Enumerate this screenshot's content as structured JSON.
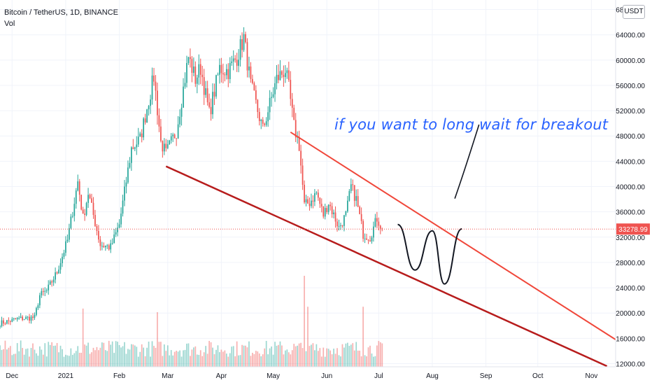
{
  "header": {
    "symbol": "Bitcoin / TetherUS, 1D, BINANCE",
    "volume_label": "Vol"
  },
  "currency_button": "USDT",
  "annotation": "if you want to long wait for breakout",
  "colors": {
    "up": "#26a69a",
    "down": "#ef5350",
    "upper_trendline": "#f0473a",
    "lower_trendline": "#b71c1c",
    "annotation": "#2962ff",
    "price_tag": "#ef5350"
  },
  "chart_data": {
    "type": "candlestick",
    "title": "Bitcoin / TetherUS, 1D, BINANCE",
    "y_axis": {
      "ticks": [
        12000,
        16000,
        20000,
        24000,
        28000,
        32000,
        36000,
        40000,
        44000,
        48000,
        52000,
        56000,
        60000,
        64000,
        68000
      ],
      "tick_labels": [
        "12000.00",
        "16000.00",
        "20000.00",
        "24000.00",
        "28000.00",
        "32000.00",
        "36000.00",
        "40000.00",
        "44000.00",
        "48000.00",
        "52000.00",
        "56000.00",
        "60000.00",
        "64000.00",
        "68000.00"
      ],
      "range": [
        11500,
        69500
      ]
    },
    "x_axis": {
      "ticks": [
        "2020-12-01",
        "2021-01-01",
        "2021-02-01",
        "2021-03-01",
        "2021-04-01",
        "2021-05-01",
        "2021-06-01",
        "2021-07-01",
        "2021-08-01",
        "2021-09-01",
        "2021-10-01",
        "2021-11-01"
      ],
      "tick_labels": [
        "Dec",
        "2021",
        "Feb",
        "Mar",
        "Apr",
        "May",
        "Jun",
        "Jul",
        "Aug",
        "Sep",
        "Oct",
        "Nov"
      ],
      "range": [
        "2020-11-24",
        "2021-11-15"
      ]
    },
    "last_price": 33278.99,
    "last_price_label": "33278.99",
    "price_keypoints": [
      [
        "2020-11-24",
        18400
      ],
      [
        "2020-12-05",
        19100
      ],
      [
        "2020-12-14",
        19300
      ],
      [
        "2020-12-17",
        22800
      ],
      [
        "2020-12-21",
        23500
      ],
      [
        "2020-12-27",
        26500
      ],
      [
        "2021-01-02",
        31500
      ],
      [
        "2021-01-08",
        40800
      ],
      [
        "2021-01-11",
        35000
      ],
      [
        "2021-01-14",
        39000
      ],
      [
        "2021-01-21",
        30800
      ],
      [
        "2021-01-27",
        30400
      ],
      [
        "2021-02-01",
        34000
      ],
      [
        "2021-02-08",
        46000
      ],
      [
        "2021-02-13",
        47500
      ],
      [
        "2021-02-21",
        57400
      ],
      [
        "2021-02-25",
        47000
      ],
      [
        "2021-02-28",
        45200
      ],
      [
        "2021-03-06",
        48800
      ],
      [
        "2021-03-13",
        60500
      ],
      [
        "2021-03-17",
        57000
      ],
      [
        "2021-03-20",
        58800
      ],
      [
        "2021-03-25",
        51500
      ],
      [
        "2021-03-31",
        58700
      ],
      [
        "2021-04-05",
        58300
      ],
      [
        "2021-04-10",
        60500
      ],
      [
        "2021-04-14",
        63500
      ],
      [
        "2021-04-18",
        56000
      ],
      [
        "2021-04-25",
        49000
      ],
      [
        "2021-04-29",
        53000
      ],
      [
        "2021-05-03",
        57000
      ],
      [
        "2021-05-08",
        58500
      ],
      [
        "2021-05-10",
        55500
      ],
      [
        "2021-05-13",
        49500
      ],
      [
        "2021-05-16",
        46500
      ],
      [
        "2021-05-19",
        37000
      ],
      [
        "2021-05-22",
        37500
      ],
      [
        "2021-05-26",
        39000
      ],
      [
        "2021-05-30",
        35500
      ],
      [
        "2021-06-02",
        37500
      ],
      [
        "2021-06-08",
        33500
      ],
      [
        "2021-06-12",
        35500
      ],
      [
        "2021-06-15",
        40000
      ],
      [
        "2021-06-18",
        38000
      ],
      [
        "2021-06-22",
        32500
      ],
      [
        "2021-06-26",
        32000
      ],
      [
        "2021-06-30",
        35000
      ],
      [
        "2021-07-03",
        33279
      ]
    ],
    "volume": {
      "scale_note": "relative",
      "peaks": [
        [
          "2021-01-11",
          3.2
        ],
        [
          "2021-02-23",
          3.0
        ],
        [
          "2021-05-19",
          5.0
        ],
        [
          "2021-05-21",
          3.3
        ],
        [
          "2021-06-22",
          3.3
        ]
      ]
    },
    "trendlines": [
      {
        "name": "upper",
        "points": [
          [
            "2021-05-11",
            48600
          ],
          [
            "2021-11-15",
            15800
          ]
        ]
      },
      {
        "name": "lower",
        "points": [
          [
            "2021-02-28",
            43200
          ],
          [
            "2021-11-10",
            11600
          ]
        ]
      }
    ],
    "projection_path": [
      [
        "2021-07-12",
        34000
      ],
      [
        "2021-07-22",
        26800
      ],
      [
        "2021-08-01",
        33000
      ],
      [
        "2021-08-08",
        24600
      ],
      [
        "2021-08-18",
        33300
      ]
    ],
    "arrow": [
      [
        "2021-08-14",
        38100
      ],
      [
        "2021-08-28",
        49800
      ]
    ]
  }
}
